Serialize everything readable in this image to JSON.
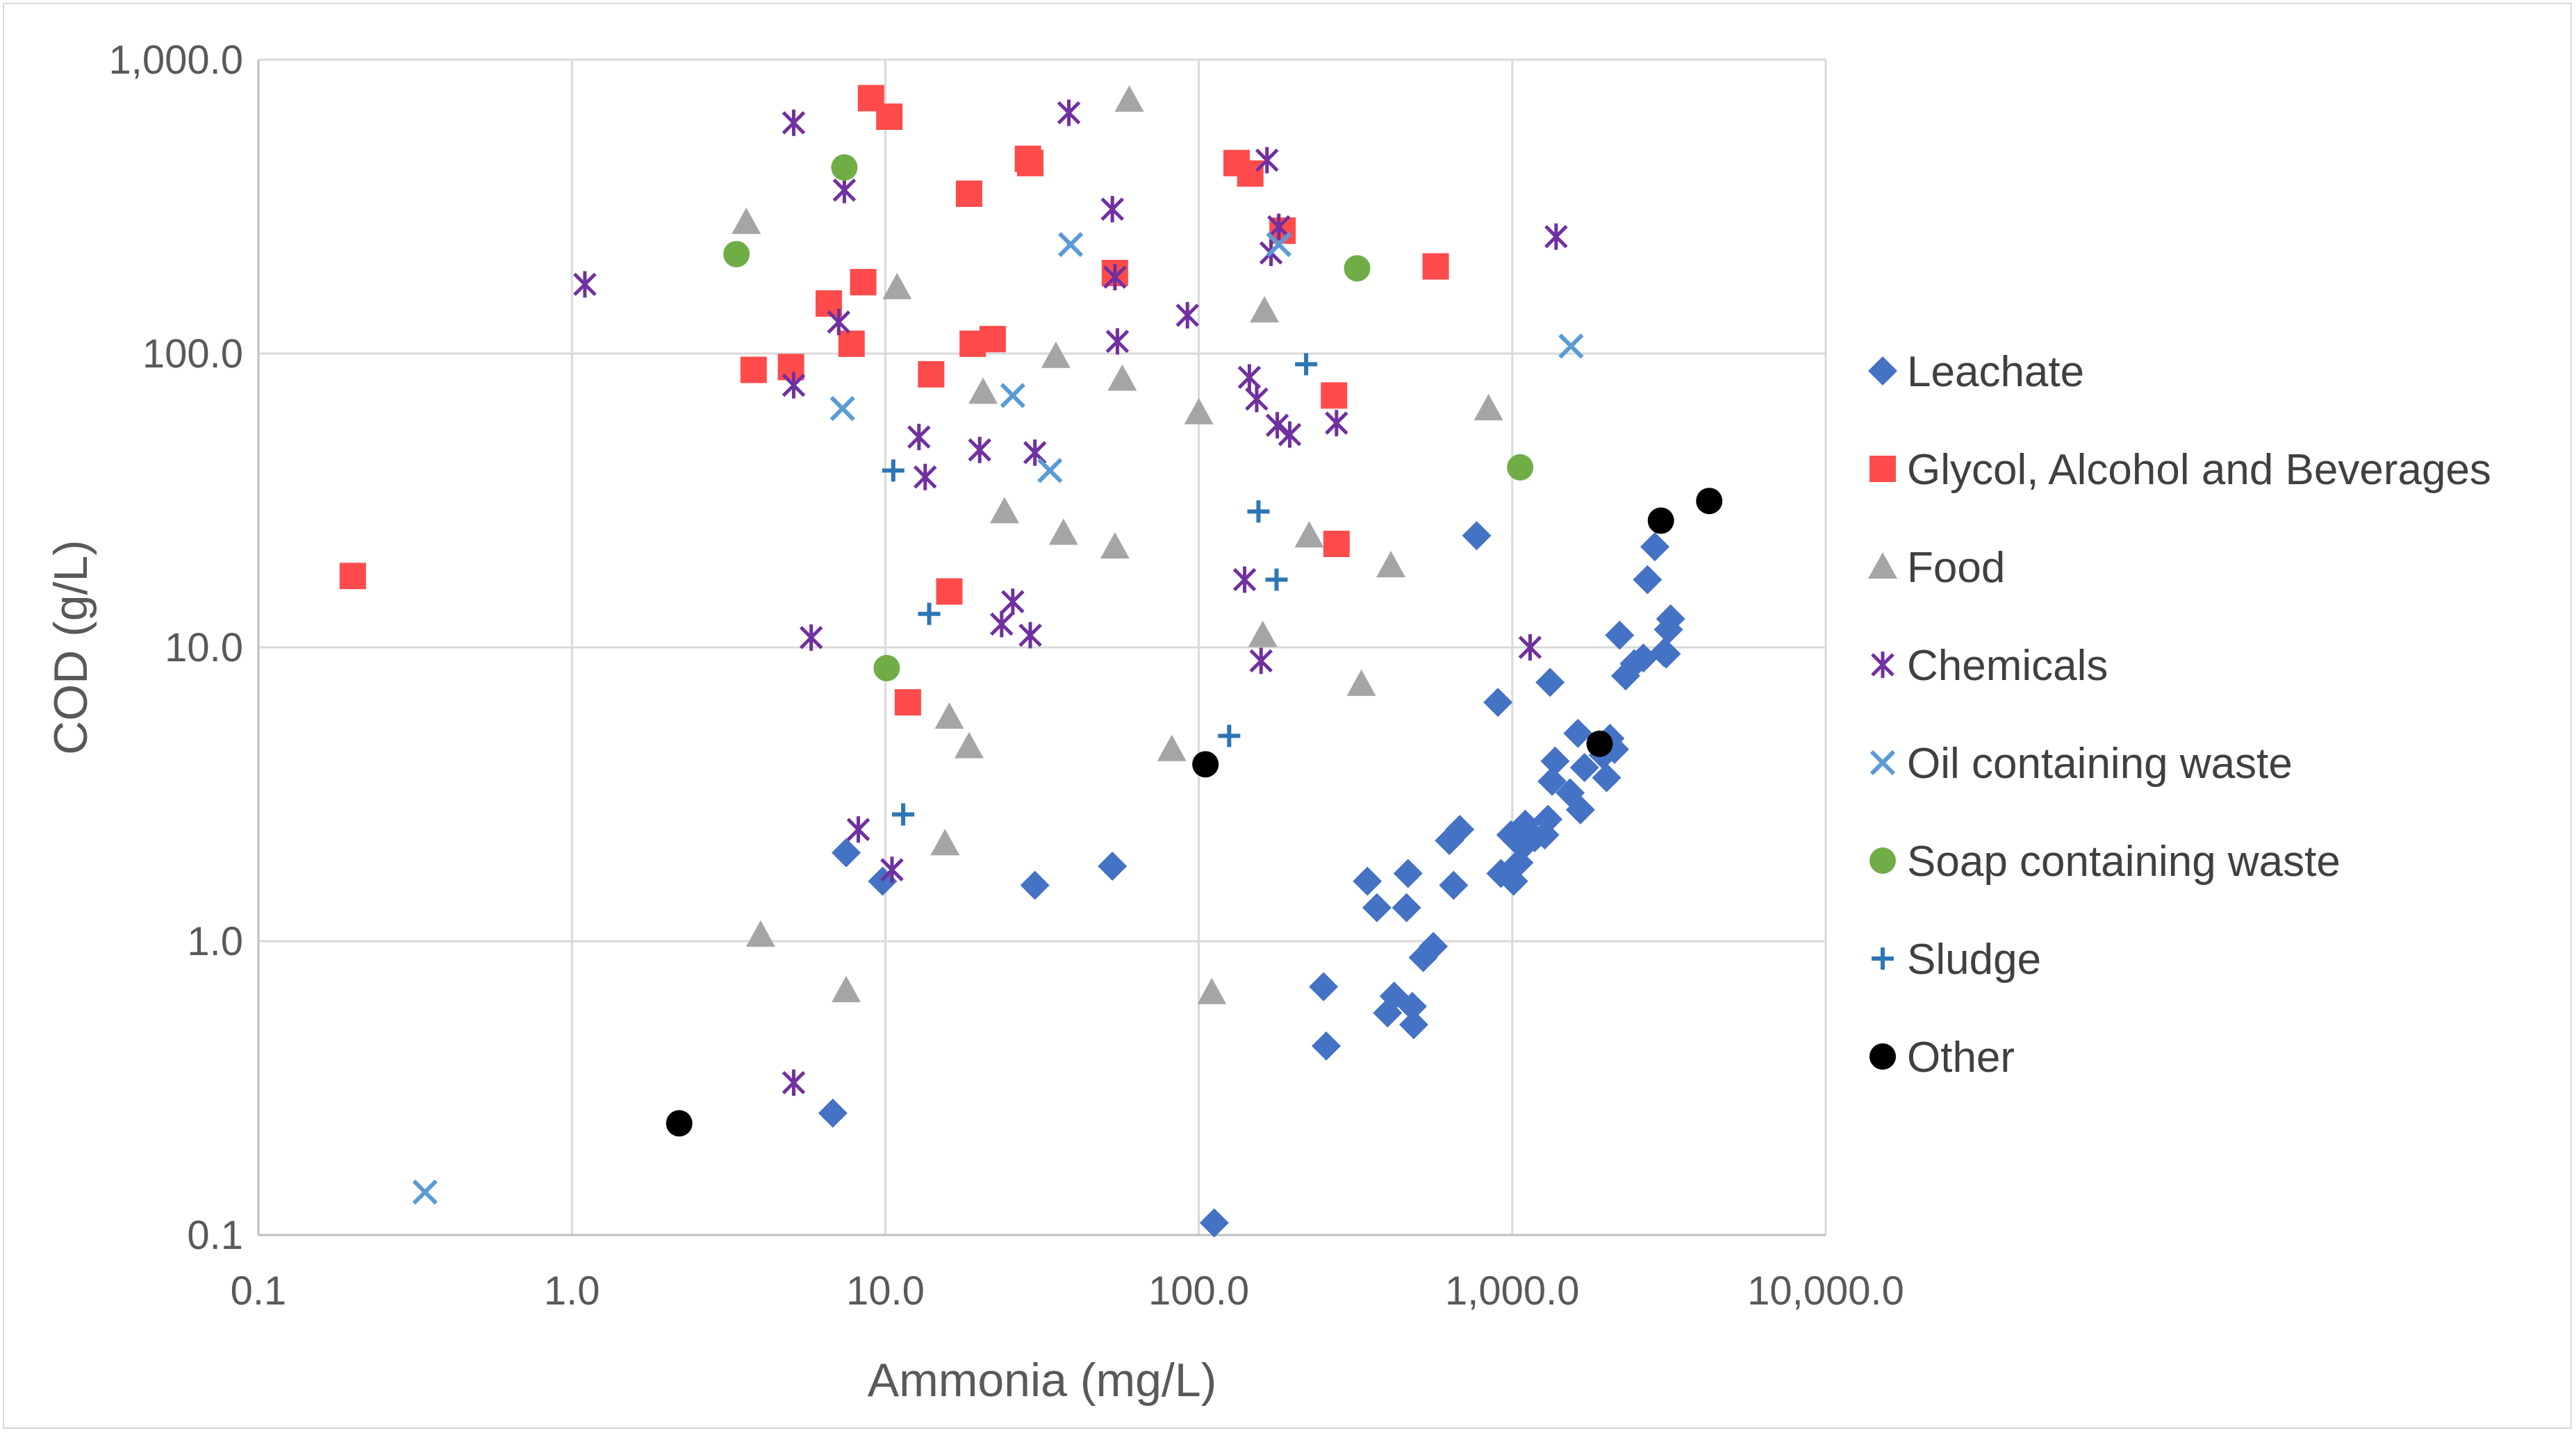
{
  "chart_data": {
    "type": "scatter",
    "title": "",
    "xlabel": "Ammonia (mg/L)",
    "ylabel": "COD (g/L)",
    "xscale": "log",
    "yscale": "log",
    "xlim": [
      0.1,
      10000
    ],
    "ylim": [
      0.1,
      1000
    ],
    "grid": true,
    "legend_position": "right",
    "x_ticks": [
      {
        "value": 0.1,
        "label": "0.1"
      },
      {
        "value": 1,
        "label": "1.0"
      },
      {
        "value": 10,
        "label": "10.0"
      },
      {
        "value": 100,
        "label": "100.0"
      },
      {
        "value": 1000,
        "label": "1,000.0"
      },
      {
        "value": 10000,
        "label": "10,000.0"
      }
    ],
    "y_ticks": [
      {
        "value": 0.1,
        "label": "0.1"
      },
      {
        "value": 1,
        "label": "1.0"
      },
      {
        "value": 10,
        "label": "10.0"
      },
      {
        "value": 100,
        "label": "100.0"
      },
      {
        "value": 1000,
        "label": "1,000.0"
      }
    ],
    "series": [
      {
        "name": "Leachate",
        "marker": "diamond",
        "color": "#4472c4",
        "points": [
          [
            7.5,
            2.0
          ],
          [
            9.8,
            1.6
          ],
          [
            30,
            1.55
          ],
          [
            53,
            1.8
          ],
          [
            6.8,
            0.26
          ],
          [
            112,
            0.11
          ],
          [
            250,
            0.7
          ],
          [
            255,
            0.44
          ],
          [
            345,
            1.6
          ],
          [
            370,
            1.3
          ],
          [
            400,
            0.57
          ],
          [
            420,
            0.65
          ],
          [
            460,
            1.3
          ],
          [
            465,
            1.7
          ],
          [
            480,
            0.6
          ],
          [
            485,
            0.52
          ],
          [
            520,
            0.88
          ],
          [
            560,
            0.96
          ],
          [
            630,
            2.2
          ],
          [
            650,
            1.55
          ],
          [
            680,
            2.4
          ],
          [
            770,
            24
          ],
          [
            900,
            6.5
          ],
          [
            920,
            1.7
          ],
          [
            990,
            2.3
          ],
          [
            1010,
            1.6
          ],
          [
            1050,
            1.85
          ],
          [
            1080,
            2.1
          ],
          [
            1100,
            2.5
          ],
          [
            1180,
            2.25
          ],
          [
            1270,
            2.3
          ],
          [
            1300,
            2.6
          ],
          [
            1320,
            7.6
          ],
          [
            1340,
            3.5
          ],
          [
            1370,
            4.1
          ],
          [
            1530,
            3.2
          ],
          [
            1620,
            5.1
          ],
          [
            1650,
            2.8
          ],
          [
            1700,
            3.9
          ],
          [
            1950,
            4.3
          ],
          [
            2000,
            3.6
          ],
          [
            2050,
            4.9
          ],
          [
            2120,
            4.5
          ],
          [
            2200,
            11
          ],
          [
            2300,
            8.0
          ],
          [
            2450,
            8.8
          ],
          [
            2620,
            9.2
          ],
          [
            2700,
            17
          ],
          [
            2850,
            22
          ],
          [
            3050,
            9.6
          ],
          [
            3150,
            11.5
          ],
          [
            3200,
            12.5
          ],
          [
            3100,
            9.5
          ]
        ]
      },
      {
        "name": "Glycol, Alcohol and Beverages",
        "marker": "square",
        "color": "#ff4b4b",
        "points": [
          [
            0.2,
            17.5
          ],
          [
            3.8,
            88
          ],
          [
            5.0,
            90
          ],
          [
            6.6,
            148
          ],
          [
            7.8,
            108
          ],
          [
            8.5,
            175
          ],
          [
            9.0,
            740
          ],
          [
            10.3,
            640
          ],
          [
            11.8,
            6.5
          ],
          [
            14,
            85
          ],
          [
            16,
            15.5
          ],
          [
            18.5,
            350
          ],
          [
            19,
            108
          ],
          [
            22,
            112
          ],
          [
            28.5,
            460
          ],
          [
            29,
            445
          ],
          [
            54,
            188
          ],
          [
            132,
            445
          ],
          [
            146,
            410
          ],
          [
            185,
            262
          ],
          [
            270,
            72
          ],
          [
            275,
            22.5
          ],
          [
            570,
            198
          ]
        ]
      },
      {
        "name": "Food",
        "marker": "triangle",
        "color": "#a5a5a5",
        "points": [
          [
            3.6,
            280
          ],
          [
            4.0,
            1.05
          ],
          [
            7.5,
            0.68
          ],
          [
            10.9,
            168
          ],
          [
            15.5,
            2.15
          ],
          [
            16,
            5.8
          ],
          [
            18.5,
            4.6
          ],
          [
            20.5,
            74
          ],
          [
            24,
            29
          ],
          [
            35,
            98
          ],
          [
            37,
            24.5
          ],
          [
            54,
            22
          ],
          [
            57,
            82
          ],
          [
            60,
            730
          ],
          [
            82,
            4.5
          ],
          [
            100,
            63
          ],
          [
            110,
            0.67
          ],
          [
            160,
            11
          ],
          [
            162,
            140
          ],
          [
            225,
            24
          ],
          [
            330,
            7.5
          ],
          [
            410,
            19
          ],
          [
            840,
            65
          ]
        ]
      },
      {
        "name": "Chemicals",
        "marker": "star",
        "color": "#7030a0",
        "points": [
          [
            1.1,
            172
          ],
          [
            5.1,
            610
          ],
          [
            5.1,
            78
          ],
          [
            5.1,
            0.33
          ],
          [
            5.8,
            10.8
          ],
          [
            7.1,
            128
          ],
          [
            7.4,
            360
          ],
          [
            8.2,
            2.4
          ],
          [
            10.5,
            1.75
          ],
          [
            12.8,
            52
          ],
          [
            13.4,
            38
          ],
          [
            20,
            47
          ],
          [
            23.5,
            12
          ],
          [
            25.5,
            14.3
          ],
          [
            29,
            11
          ],
          [
            30,
            46
          ],
          [
            38.5,
            660
          ],
          [
            53,
            310
          ],
          [
            54,
            182
          ],
          [
            55,
            110
          ],
          [
            92,
            135
          ],
          [
            140,
            17
          ],
          [
            145,
            83
          ],
          [
            153,
            70
          ],
          [
            158,
            9.0
          ],
          [
            165,
            455
          ],
          [
            170,
            220
          ],
          [
            178,
            57
          ],
          [
            180,
            270
          ],
          [
            195,
            53
          ],
          [
            275,
            58
          ],
          [
            1140,
            10
          ],
          [
            1380,
            250
          ]
        ]
      },
      {
        "name": "Oil containing waste",
        "marker": "x",
        "color": "#5b9bd5",
        "points": [
          [
            0.34,
            0.14
          ],
          [
            7.3,
            65
          ],
          [
            25.5,
            72
          ],
          [
            33.5,
            40
          ],
          [
            39,
            235
          ],
          [
            180,
            235
          ],
          [
            1540,
            106
          ]
        ]
      },
      {
        "name": "Soap containing waste",
        "marker": "circle",
        "color": "#70ad47",
        "points": [
          [
            3.35,
            218
          ],
          [
            7.4,
            430
          ],
          [
            10.1,
            8.5
          ],
          [
            320,
            195
          ],
          [
            1060,
            41
          ]
        ]
      },
      {
        "name": "Sludge",
        "marker": "plus",
        "color": "#2e75b6",
        "points": [
          [
            10.6,
            40
          ],
          [
            11.4,
            2.7
          ],
          [
            13.8,
            13
          ],
          [
            125,
            5.0
          ],
          [
            155,
            29
          ],
          [
            177,
            17
          ],
          [
            220,
            92
          ]
        ]
      },
      {
        "name": "Other",
        "marker": "circle",
        "color": "#000000",
        "points": [
          [
            2.2,
            0.24
          ],
          [
            105,
            4.0
          ],
          [
            1900,
            4.7
          ],
          [
            2980,
            27
          ],
          [
            4250,
            31.5
          ]
        ]
      }
    ]
  }
}
